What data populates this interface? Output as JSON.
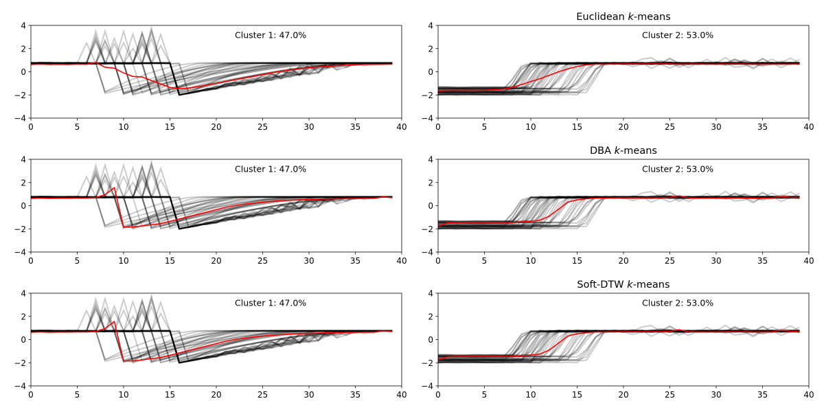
{
  "figure": {
    "background": "#ffffff",
    "sample_color": "#000000",
    "center_color": "#ff0000"
  },
  "chart_data": [
    {
      "type": "line",
      "row": 1,
      "col": 1,
      "title": "",
      "annotation": "Cluster 1: 47.0%",
      "xlim": [
        0,
        40
      ],
      "ylim": [
        -4,
        4
      ],
      "xticks": [
        "0",
        "5",
        "10",
        "15",
        "20",
        "25",
        "30",
        "35",
        "40"
      ],
      "yticks": [
        "4",
        "2",
        "0",
        "−2",
        "−4"
      ],
      "samples": "cluster-1 samples (grey, semi-transparent)",
      "center": {
        "x": [
          0,
          1,
          2,
          3,
          4,
          5,
          6,
          7,
          8,
          9,
          10,
          11,
          12,
          13,
          14,
          15,
          16,
          17,
          18,
          19,
          20,
          21,
          22,
          23,
          24,
          25,
          26,
          27,
          28,
          29,
          30,
          31,
          32,
          33,
          34,
          35,
          36,
          37,
          38,
          39
        ],
        "y": [
          0.62,
          0.65,
          0.63,
          0.64,
          0.62,
          0.65,
          0.64,
          0.8,
          0.4,
          0.3,
          -0.1,
          -0.4,
          -0.45,
          -0.75,
          -1.05,
          -1.35,
          -1.45,
          -1.4,
          -1.3,
          -1.15,
          -1.0,
          -0.85,
          -0.7,
          -0.55,
          -0.4,
          -0.25,
          -0.1,
          0.05,
          0.15,
          0.25,
          0.35,
          0.42,
          0.48,
          0.53,
          0.57,
          0.6,
          0.62,
          0.63,
          0.64,
          0.65
        ]
      }
    },
    {
      "type": "line",
      "row": 1,
      "col": 2,
      "title": "Euclidean",
      "title_italic": "k",
      "title_suffix": "-means",
      "annotation": "Cluster 2: 53.0%",
      "xlim": [
        0,
        40
      ],
      "ylim": [
        -4,
        4
      ],
      "xticks": [
        "0",
        "5",
        "10",
        "15",
        "20",
        "25",
        "30",
        "35",
        "40"
      ],
      "yticks": [
        "4",
        "2",
        "0",
        "−2",
        "−4"
      ],
      "samples": "cluster-2 samples (grey, semi-transparent)",
      "center": {
        "x": [
          0,
          1,
          2,
          3,
          4,
          5,
          6,
          7,
          8,
          9,
          10,
          11,
          12,
          13,
          14,
          15,
          16,
          17,
          18,
          19,
          20,
          21,
          22,
          23,
          24,
          25,
          26,
          27,
          28,
          29,
          30,
          31,
          32,
          33,
          34,
          35,
          36,
          37,
          38,
          39
        ],
        "y": [
          -1.65,
          -1.6,
          -1.6,
          -1.6,
          -1.6,
          -1.6,
          -1.55,
          -1.5,
          -1.35,
          -1.1,
          -0.85,
          -0.6,
          -0.3,
          0.0,
          0.25,
          0.45,
          0.6,
          0.65,
          0.66,
          0.67,
          0.68,
          0.68,
          0.68,
          0.68,
          0.68,
          0.68,
          0.66,
          0.67,
          0.67,
          0.66,
          0.66,
          0.67,
          0.67,
          0.67,
          0.66,
          0.66,
          0.66,
          0.66,
          0.66,
          0.67
        ]
      }
    },
    {
      "type": "line",
      "row": 2,
      "col": 1,
      "title": "",
      "annotation": "Cluster 1: 47.0%",
      "xlim": [
        0,
        40
      ],
      "ylim": [
        -4,
        4
      ],
      "xticks": [
        "0",
        "5",
        "10",
        "15",
        "20",
        "25",
        "30",
        "35",
        "40"
      ],
      "yticks": [
        "4",
        "2",
        "0",
        "−2",
        "−4"
      ],
      "samples": "cluster-1 samples (grey, semi-transparent)",
      "center": {
        "x": [
          0,
          1,
          2,
          3,
          4,
          5,
          6,
          7,
          8,
          9,
          10,
          11,
          12,
          13,
          14,
          15,
          16,
          17,
          18,
          19,
          20,
          21,
          22,
          23,
          24,
          25,
          26,
          27,
          28,
          29,
          30,
          31,
          32,
          33,
          34,
          35,
          36,
          37,
          38,
          39
        ],
        "y": [
          0.62,
          0.65,
          0.63,
          0.64,
          0.64,
          0.65,
          0.65,
          0.7,
          0.95,
          1.55,
          -1.85,
          -1.85,
          -1.75,
          -1.65,
          -1.55,
          -1.35,
          -1.15,
          -0.95,
          -0.75,
          -0.55,
          -0.35,
          -0.15,
          0.0,
          0.12,
          0.22,
          0.3,
          0.36,
          0.42,
          0.46,
          0.5,
          0.53,
          0.56,
          0.58,
          0.6,
          0.61,
          0.62,
          0.62,
          0.63,
          0.75,
          0.68
        ]
      }
    },
    {
      "type": "line",
      "row": 2,
      "col": 2,
      "title": "DBA",
      "title_italic": "k",
      "title_suffix": "-means",
      "annotation": "Cluster 2: 53.0%",
      "xlim": [
        0,
        40
      ],
      "ylim": [
        -4,
        4
      ],
      "xticks": [
        "0",
        "5",
        "10",
        "15",
        "20",
        "25",
        "30",
        "35",
        "40"
      ],
      "yticks": [
        "4",
        "2",
        "0",
        "−2",
        "−4"
      ],
      "samples": "cluster-2 samples (grey, semi-transparent)",
      "center": {
        "x": [
          0,
          1,
          2,
          3,
          4,
          5,
          6,
          7,
          8,
          9,
          10,
          11,
          12,
          13,
          14,
          15,
          16,
          17,
          18,
          19,
          20,
          21,
          22,
          23,
          24,
          25,
          26,
          27,
          28,
          29,
          30,
          31,
          32,
          33,
          34,
          35,
          36,
          37,
          38,
          39
        ],
        "y": [
          -1.75,
          -1.5,
          -1.45,
          -1.45,
          -1.45,
          -1.45,
          -1.45,
          -1.45,
          -1.45,
          -1.4,
          -1.35,
          -1.25,
          -0.9,
          -0.3,
          0.3,
          0.5,
          0.6,
          0.65,
          0.66,
          0.67,
          0.68,
          0.68,
          0.68,
          0.68,
          0.68,
          0.72,
          0.85,
          0.68,
          0.66,
          0.66,
          0.66,
          0.67,
          0.67,
          0.67,
          0.66,
          0.66,
          0.66,
          0.8,
          0.72,
          0.7
        ]
      }
    },
    {
      "type": "line",
      "row": 3,
      "col": 1,
      "title": "",
      "annotation": "Cluster 1: 47.0%",
      "xlim": [
        0,
        40
      ],
      "ylim": [
        -4,
        4
      ],
      "xticks": [
        "0",
        "5",
        "10",
        "15",
        "20",
        "25",
        "30",
        "35",
        "40"
      ],
      "yticks": [
        "4",
        "2",
        "0",
        "−2",
        "−4"
      ],
      "samples": "cluster-1 samples (grey, semi-transparent)",
      "center": {
        "x": [
          0,
          1,
          2,
          3,
          4,
          5,
          6,
          7,
          8,
          9,
          10,
          11,
          12,
          13,
          14,
          15,
          16,
          17,
          18,
          19,
          20,
          21,
          22,
          23,
          24,
          25,
          26,
          27,
          28,
          29,
          30,
          31,
          32,
          33,
          34,
          35,
          36,
          37,
          38,
          39
        ],
        "y": [
          0.62,
          0.65,
          0.63,
          0.64,
          0.64,
          0.65,
          0.65,
          0.7,
          0.95,
          1.55,
          -1.85,
          -1.85,
          -1.75,
          -1.65,
          -1.55,
          -1.35,
          -1.15,
          -0.95,
          -0.75,
          -0.55,
          -0.35,
          -0.15,
          0.0,
          0.12,
          0.22,
          0.3,
          0.36,
          0.42,
          0.46,
          0.5,
          0.53,
          0.56,
          0.58,
          0.6,
          0.61,
          0.62,
          0.62,
          0.63,
          0.75,
          0.68
        ]
      }
    },
    {
      "type": "line",
      "row": 3,
      "col": 2,
      "title": "Soft-DTW",
      "title_italic": "k",
      "title_suffix": "-means",
      "annotation": "Cluster 2: 53.0%",
      "xlim": [
        0,
        40
      ],
      "ylim": [
        -4,
        4
      ],
      "xticks": [
        "0",
        "5",
        "10",
        "15",
        "20",
        "25",
        "30",
        "35",
        "40"
      ],
      "yticks": [
        "4",
        "2",
        "0",
        "−2",
        "−4"
      ],
      "samples": "cluster-2 samples (grey, semi-transparent)",
      "center": {
        "x": [
          0,
          1,
          2,
          3,
          4,
          5,
          6,
          7,
          8,
          9,
          10,
          11,
          12,
          13,
          14,
          15,
          16,
          17,
          18,
          19,
          20,
          21,
          22,
          23,
          24,
          25,
          26,
          27,
          28,
          29,
          30,
          31,
          32,
          33,
          34,
          35,
          36,
          37,
          38,
          39
        ],
        "y": [
          -1.75,
          -1.5,
          -1.45,
          -1.45,
          -1.45,
          -1.45,
          -1.45,
          -1.45,
          -1.45,
          -1.4,
          -1.35,
          -1.25,
          -0.9,
          -0.3,
          0.3,
          0.5,
          0.6,
          0.65,
          0.66,
          0.67,
          0.68,
          0.68,
          0.68,
          0.68,
          0.68,
          0.72,
          0.85,
          0.68,
          0.66,
          0.66,
          0.66,
          0.67,
          0.67,
          0.67,
          0.66,
          0.66,
          0.66,
          0.8,
          0.72,
          0.7
        ]
      }
    }
  ]
}
